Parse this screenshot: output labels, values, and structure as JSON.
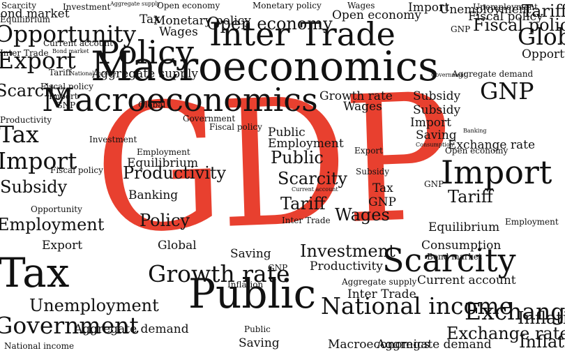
{
  "colors": {
    "background": "#ffffff",
    "text": "#111111",
    "accent": "#e8402f"
  },
  "center_word": "GDP",
  "words": [
    "Scarcity",
    "Bond market",
    "Investment",
    "Aggregate supply",
    "Open economy",
    "Monetary policy",
    "Wages",
    "Open economy",
    "Import",
    "Unemployment",
    "Fiscal policy",
    "Tariff",
    "Equilibrium",
    "Opportunity",
    "Tax",
    "Monetary policy",
    "Wages",
    "Open economy",
    "Inter Trade",
    "Unemployment",
    "GNP",
    "Fiscal policy",
    "Glob",
    "Export",
    "Policy",
    "Inter Trade",
    "Macroeconomics",
    "Opportunity",
    "Current account",
    "Bond market",
    "Tariff",
    "National income",
    "Aggregate supply",
    "Government",
    "Aggregate demand",
    "Scarcity",
    "Fiscal policy",
    "Import",
    "GNP",
    "Global",
    "Subsidy",
    "Growth rate",
    "Wages",
    "Macroeconomics",
    "GNP",
    "Subsidy",
    "Import",
    "Saving",
    "Consumption",
    "Productivity",
    "Tax",
    "Government",
    "Fiscal policy",
    "Investment",
    "Employment",
    "Equilibrium",
    "Productivity",
    "Banking",
    "Policy",
    "Global",
    "Import",
    "Fiscal policy",
    "Subsidy",
    "Opportunity",
    "Employment",
    "Export",
    "Tax",
    "Unemployment",
    "Government",
    "National income",
    "Aggregate demand",
    "Public",
    "Saving",
    "Growth rate",
    "GNP",
    "Public",
    "Employment",
    "Public",
    "Scarcity",
    "Current account",
    "Tariff",
    "Inter Trade",
    "Export",
    "Subsidy",
    "Tax",
    "GNP",
    "Wages",
    "GNP",
    "Import",
    "Tariff",
    "Equilibrium",
    "Employment",
    "Consumption",
    "Open economy",
    "Banking",
    "Exchange rate",
    "Bond market",
    "Investment",
    "Productivity",
    "Scarcity",
    "Current account",
    "Public",
    "Inflation",
    "National income",
    "Exchange rate",
    "Aggregate supply",
    "Inflation",
    "Saving",
    "Inter Trade",
    "Macroeconomics",
    "Aggregate demand",
    "Exchange rate",
    "Inflation"
  ]
}
